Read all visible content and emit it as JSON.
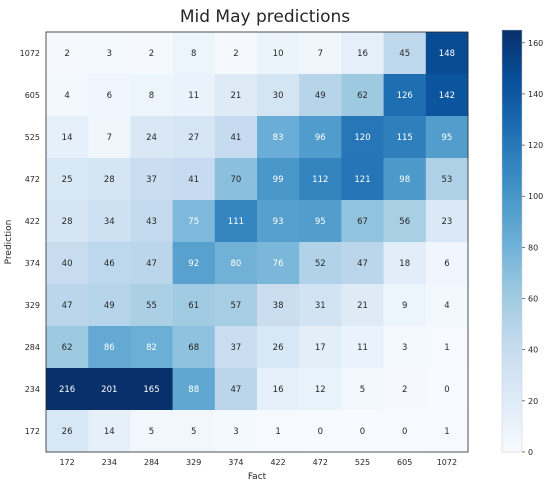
{
  "chart_data": {
    "type": "heatmap",
    "title": "Mid May predictions",
    "xlabel": "Fact",
    "ylabel": "Prediction",
    "x_categories": [
      "172",
      "234",
      "284",
      "329",
      "374",
      "422",
      "472",
      "525",
      "605",
      "1072"
    ],
    "y_categories": [
      "1072",
      "605",
      "525",
      "472",
      "422",
      "374",
      "329",
      "284",
      "234",
      "172"
    ],
    "values": [
      [
        2,
        3,
        2,
        8,
        2,
        10,
        7,
        16,
        45,
        148
      ],
      [
        4,
        6,
        8,
        11,
        21,
        30,
        49,
        62,
        126,
        142
      ],
      [
        14,
        7,
        24,
        27,
        41,
        83,
        96,
        120,
        115,
        95
      ],
      [
        25,
        28,
        37,
        41,
        70,
        99,
        112,
        121,
        98,
        53
      ],
      [
        28,
        34,
        43,
        75,
        111,
        93,
        95,
        67,
        56,
        23
      ],
      [
        40,
        46,
        47,
        92,
        80,
        76,
        52,
        47,
        18,
        6
      ],
      [
        47,
        49,
        55,
        61,
        57,
        38,
        31,
        21,
        9,
        4
      ],
      [
        62,
        86,
        82,
        68,
        37,
        26,
        17,
        11,
        3,
        1
      ],
      [
        216,
        201,
        165,
        88,
        47,
        16,
        12,
        5,
        2,
        0
      ],
      [
        26,
        14,
        5,
        5,
        3,
        1,
        0,
        0,
        0,
        1
      ]
    ],
    "colormap": "Blues",
    "color_range": [
      0,
      165
    ],
    "colorbar_ticks": [
      "0",
      "20",
      "40",
      "60",
      "80",
      "100",
      "120",
      "140",
      "160"
    ],
    "colorbar_tick_values": [
      0,
      20,
      40,
      60,
      80,
      100,
      120,
      140,
      160
    ],
    "colors": {
      "low": "#f7fbff",
      "high": "#08306b",
      "text_dark": "#262626",
      "text_light": "#ffffff"
    }
  }
}
